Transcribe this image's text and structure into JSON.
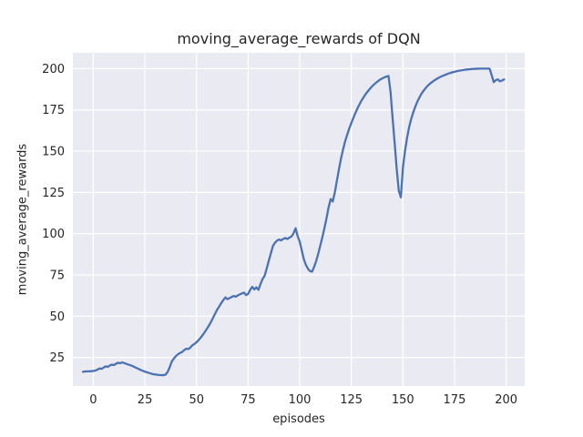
{
  "figure": {
    "title": "moving_average_rewards of DQN",
    "xlabel": "episodes",
    "ylabel": "moving_average_rewards"
  },
  "chart_data": {
    "type": "line",
    "title": "moving_average_rewards of DQN",
    "xlabel": "episodes",
    "ylabel": "moving_average_rewards",
    "legend": false,
    "grid": true,
    "plot_bg_color": "#EAEAF2",
    "grid_color": "#FFFFFF",
    "line_color": "#4C72B0",
    "text_color": "#262626",
    "xticks": [
      0,
      25,
      50,
      75,
      100,
      125,
      150,
      175,
      200
    ],
    "yticks": [
      25,
      50,
      75,
      100,
      125,
      150,
      175,
      200
    ],
    "xlim": [
      -9.9,
      209.0
    ],
    "ylim": [
      7.7,
      209.6
    ],
    "x": [
      -5,
      -4,
      -3,
      -2,
      -1,
      0,
      1,
      2,
      3,
      4,
      5,
      6,
      7,
      8,
      9,
      10,
      11,
      12,
      13,
      14,
      15,
      16,
      17,
      18,
      19,
      20,
      21,
      22,
      23,
      24,
      25,
      26,
      27,
      28,
      29,
      30,
      31,
      32,
      33,
      34,
      35,
      36,
      37,
      38,
      39,
      40,
      41,
      42,
      43,
      44,
      45,
      46,
      47,
      48,
      49,
      50,
      51,
      52,
      53,
      54,
      55,
      56,
      57,
      58,
      59,
      60,
      61,
      62,
      63,
      64,
      65,
      66,
      67,
      68,
      69,
      70,
      71,
      72,
      73,
      74,
      75,
      76,
      77,
      78,
      79,
      80,
      81,
      82,
      83,
      84,
      85,
      86,
      87,
      88,
      89,
      90,
      91,
      92,
      93,
      94,
      95,
      96,
      97,
      98,
      99,
      100,
      101,
      102,
      103,
      104,
      105,
      106,
      107,
      108,
      109,
      110,
      111,
      112,
      113,
      114,
      115,
      116,
      117,
      118,
      119,
      120,
      121,
      122,
      123,
      124,
      125,
      126,
      127,
      128,
      129,
      130,
      131,
      132,
      133,
      134,
      135,
      136,
      137,
      138,
      139,
      140,
      141,
      142,
      143,
      144,
      145,
      146,
      147,
      148,
      149,
      150,
      151,
      152,
      153,
      154,
      155,
      156,
      157,
      158,
      159,
      160,
      161,
      162,
      163,
      164,
      165,
      166,
      167,
      168,
      169,
      170,
      171,
      172,
      173,
      174,
      175,
      176,
      177,
      178,
      179,
      180,
      181,
      182,
      183,
      184,
      185,
      186,
      187,
      188,
      189,
      190,
      191,
      192,
      193,
      194,
      195,
      196,
      197,
      198,
      199
    ],
    "y": [
      16.3,
      16.5,
      16.6,
      16.6,
      16.7,
      16.8,
      17.1,
      17.6,
      18.3,
      18.1,
      18.9,
      19.6,
      19.3,
      20.1,
      20.7,
      20.4,
      21.2,
      21.8,
      21.5,
      22.0,
      21.6,
      21.1,
      20.7,
      20.3,
      19.8,
      19.2,
      18.6,
      18.0,
      17.4,
      16.9,
      16.4,
      16.0,
      15.6,
      15.2,
      14.9,
      14.7,
      14.5,
      14.4,
      14.3,
      14.3,
      14.6,
      16.2,
      19.0,
      22.5,
      24.3,
      25.8,
      26.9,
      27.7,
      28.3,
      29.4,
      30.3,
      30.1,
      31.0,
      32.4,
      33.2,
      34.2,
      35.5,
      37.0,
      38.6,
      40.4,
      42.3,
      44.3,
      46.5,
      49.0,
      51.5,
      54.0,
      55.9,
      58.0,
      59.8,
      61.4,
      60.3,
      61.0,
      61.6,
      62.3,
      61.8,
      62.6,
      63.2,
      63.8,
      64.3,
      62.8,
      63.5,
      66.0,
      67.8,
      66.2,
      67.5,
      66.0,
      69.5,
      72.5,
      74.5,
      78.9,
      83.5,
      88.0,
      92.5,
      94.5,
      95.8,
      96.5,
      95.9,
      96.8,
      97.4,
      96.8,
      97.6,
      98.3,
      100.2,
      103.3,
      98.5,
      95.2,
      89.8,
      84.5,
      81.0,
      78.8,
      77.3,
      77.0,
      80.0,
      83.5,
      88.0,
      93.0,
      98.0,
      103.5,
      109.5,
      116.0,
      121.0,
      119.5,
      125.0,
      132.0,
      139.0,
      145.5,
      151.0,
      156.0,
      160.0,
      163.8,
      167.0,
      170.2,
      173.2,
      176.0,
      178.5,
      180.8,
      182.8,
      184.7,
      186.3,
      187.8,
      189.2,
      190.4,
      191.5,
      192.5,
      193.4,
      194.1,
      194.7,
      195.2,
      195.6,
      186.0,
      170.0,
      155.0,
      139.0,
      126.0,
      122.0,
      140.0,
      150.0,
      158.0,
      164.5,
      169.5,
      173.5,
      177.0,
      180.0,
      182.6,
      184.8,
      186.6,
      188.2,
      189.6,
      190.8,
      191.8,
      192.7,
      193.5,
      194.2,
      194.9,
      195.5,
      196.0,
      196.5,
      197.0,
      197.4,
      197.8,
      198.1,
      198.4,
      198.7,
      198.9,
      199.1,
      199.3,
      199.5,
      199.6,
      199.7,
      199.8,
      199.9,
      199.9,
      200.0,
      200.0,
      200.0,
      200.0,
      200.0,
      200.0,
      196.0,
      191.8,
      193.0,
      193.5,
      192.3,
      192.8,
      193.5
    ]
  }
}
